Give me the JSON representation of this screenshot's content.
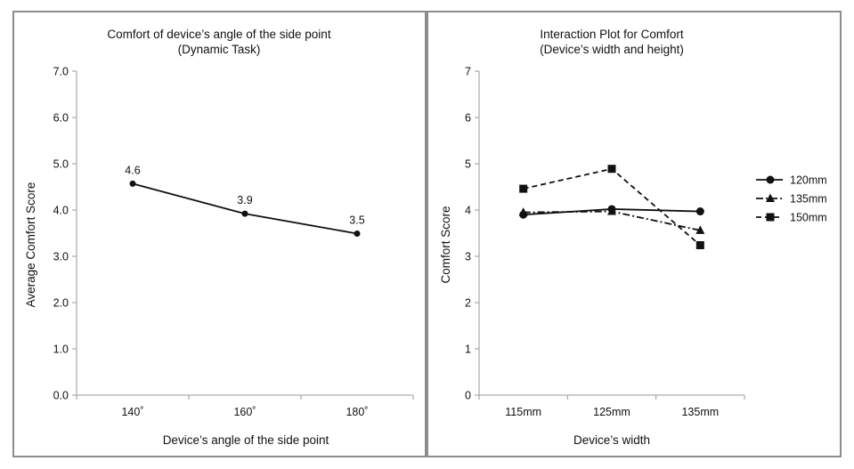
{
  "chart_data": [
    {
      "type": "line",
      "title": "Comfort of device’s angle of the side point",
      "subtitle": "(Dynamic Task)",
      "xlabel": "Device’s angle of the side point",
      "ylabel": "Average Comfort Score",
      "categories": [
        "140˚",
        "160˚",
        "180˚"
      ],
      "ylim": [
        0,
        7
      ],
      "yticks": [
        "0.0",
        "1.0",
        "2.0",
        "3.0",
        "4.0",
        "5.0",
        "6.0",
        "7.0"
      ],
      "grid": false,
      "series": [
        {
          "values": [
            4.57,
            3.92,
            3.49
          ],
          "data_labels": [
            "4.6",
            "3.9",
            "3.5"
          ],
          "style": "solid",
          "marker": "none",
          "color": "#111111"
        }
      ]
    },
    {
      "type": "line",
      "title": "Interaction Plot for Comfort",
      "subtitle": "(Device’s width and height)",
      "xlabel": "Device’s width",
      "ylabel": "Comfort Score",
      "categories": [
        "115mm",
        "125mm",
        "135mm"
      ],
      "ylim": [
        0,
        7
      ],
      "yticks": [
        "0",
        "1",
        "2",
        "3",
        "4",
        "5",
        "6",
        "7"
      ],
      "grid": false,
      "legend_position": "right",
      "series": [
        {
          "name": "120mm",
          "values": [
            3.9,
            4.02,
            3.97
          ],
          "style": "solid",
          "marker": "circle",
          "color": "#111111"
        },
        {
          "name": "135mm",
          "values": [
            3.95,
            3.97,
            3.56
          ],
          "style": "dashdot",
          "marker": "triangle",
          "color": "#111111"
        },
        {
          "name": "150mm",
          "values": [
            4.46,
            4.89,
            3.24
          ],
          "style": "dashed",
          "marker": "square",
          "color": "#111111"
        }
      ]
    }
  ]
}
